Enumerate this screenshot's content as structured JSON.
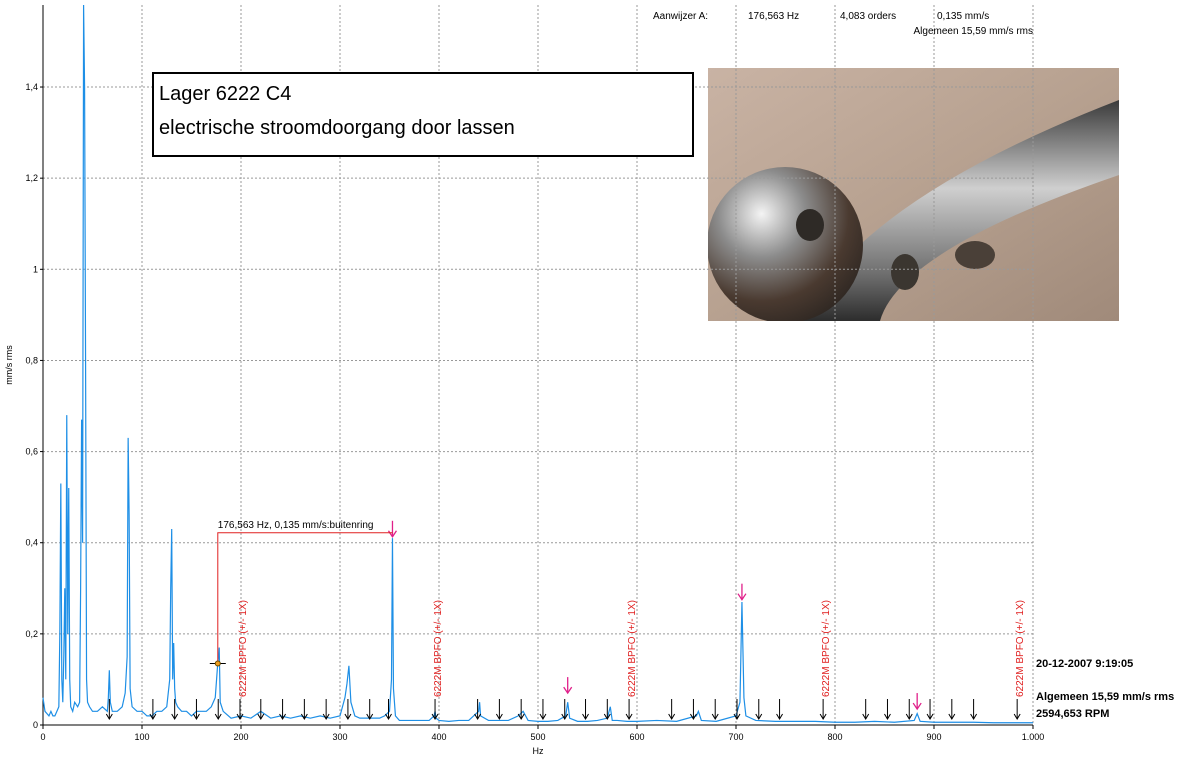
{
  "chart_data": {
    "type": "line",
    "x_label": "Hz",
    "y_label": "mm/s rms",
    "color": "#1e8fe6",
    "xlim": [
      0,
      1000
    ],
    "ylim": [
      0,
      1.58
    ],
    "xticks": [
      0,
      100,
      200,
      300,
      400,
      500,
      600,
      700,
      800,
      900,
      {
        "value": 1000,
        "label": "1.000"
      }
    ],
    "yticks": [
      0,
      {
        "value": 0.2,
        "label": "0,2"
      },
      {
        "value": 0.4,
        "label": "0,4"
      },
      {
        "value": 0.6,
        "label": "0,6"
      },
      {
        "value": 0.8,
        "label": "0,8"
      },
      1,
      {
        "value": 1.2,
        "label": "1,2"
      },
      {
        "value": 1.4,
        "label": "1,4"
      }
    ],
    "grid": true,
    "x": [
      0,
      2,
      4,
      6,
      8,
      10,
      12,
      14,
      16,
      17,
      18,
      19,
      20,
      21,
      22,
      23,
      24,
      25,
      26,
      27,
      28,
      30,
      32,
      35,
      37,
      38,
      39,
      40,
      41,
      42,
      43,
      44,
      45,
      47,
      50,
      55,
      60,
      65,
      66,
      67,
      68,
      70,
      75,
      80,
      83,
      85,
      86,
      87,
      88,
      90,
      95,
      100,
      105,
      110,
      115,
      120,
      125,
      128,
      129,
      130,
      131,
      132,
      133,
      134,
      136,
      140,
      145,
      150,
      155,
      160,
      165,
      170,
      174,
      176.5,
      178,
      179,
      182,
      190,
      200,
      210,
      220,
      230,
      240,
      250,
      260,
      270,
      280,
      290,
      300,
      305,
      307,
      309,
      311,
      315,
      320,
      330,
      340,
      345,
      350,
      352,
      353,
      354,
      356,
      360,
      370,
      380,
      390,
      395,
      396,
      397,
      400,
      410,
      420,
      430,
      440,
      441,
      442,
      450,
      460,
      470,
      480,
      485,
      490,
      500,
      510,
      520,
      528,
      530,
      532,
      540,
      550,
      560,
      570,
      573,
      575,
      580,
      590,
      600,
      620,
      640,
      660,
      662,
      665,
      680,
      700,
      704,
      706,
      708,
      710,
      720,
      740,
      760,
      780,
      800,
      820,
      840,
      860,
      880,
      883,
      886,
      900,
      920,
      940,
      960,
      980,
      1000
    ],
    "values": [
      0.06,
      0.03,
      0.025,
      0.02,
      0.03,
      0.02,
      0.02,
      0.03,
      0.04,
      0.2,
      0.53,
      0.1,
      0.05,
      0.15,
      0.3,
      0.1,
      0.68,
      0.2,
      0.52,
      0.1,
      0.04,
      0.03,
      0.05,
      0.04,
      0.05,
      0.3,
      0.67,
      0.4,
      1.58,
      1.4,
      0.8,
      0.1,
      0.05,
      0.04,
      0.03,
      0.03,
      0.04,
      0.03,
      0.06,
      0.12,
      0.05,
      0.03,
      0.03,
      0.04,
      0.07,
      0.15,
      0.63,
      0.46,
      0.08,
      0.04,
      0.03,
      0.03,
      0.02,
      0.02,
      0.03,
      0.03,
      0.04,
      0.1,
      0.3,
      0.43,
      0.1,
      0.18,
      0.08,
      0.05,
      0.04,
      0.03,
      0.03,
      0.02,
      0.03,
      0.03,
      0.03,
      0.04,
      0.06,
      0.135,
      0.17,
      0.05,
      0.03,
      0.015,
      0.02,
      0.015,
      0.03,
      0.015,
      0.02,
      0.015,
      0.02,
      0.015,
      0.02,
      0.015,
      0.02,
      0.06,
      0.09,
      0.13,
      0.05,
      0.02,
      0.015,
      0.015,
      0.015,
      0.02,
      0.03,
      0.1,
      0.41,
      0.08,
      0.02,
      0.01,
      0.01,
      0.01,
      0.01,
      0.02,
      0.03,
      0.015,
      0.01,
      0.008,
      0.01,
      0.01,
      0.03,
      0.05,
      0.02,
      0.01,
      0.01,
      0.01,
      0.02,
      0.03,
      0.01,
      0.008,
      0.008,
      0.01,
      0.02,
      0.05,
      0.015,
      0.008,
      0.008,
      0.01,
      0.015,
      0.04,
      0.01,
      0.01,
      0.008,
      0.008,
      0.01,
      0.008,
      0.02,
      0.03,
      0.01,
      0.008,
      0.02,
      0.05,
      0.27,
      0.06,
      0.02,
      0.01,
      0.008,
      0.008,
      0.008,
      0.006,
      0.006,
      0.008,
      0.006,
      0.01,
      0.025,
      0.008,
      0.006,
      0.006,
      0.006,
      0.005,
      0.005,
      0.005
    ],
    "harmonic_markers": [
      67,
      111,
      133,
      155,
      177,
      199,
      220,
      242,
      264,
      286,
      308,
      330,
      349,
      396,
      439,
      461,
      483,
      505,
      527,
      548,
      570,
      592,
      635,
      657,
      679,
      701,
      723,
      744,
      788,
      831,
      853,
      875,
      896,
      918,
      940,
      984
    ],
    "peak_markers": [
      {
        "x": 353,
        "y": 0.413
      },
      {
        "x": 530,
        "y": 0.07
      },
      {
        "x": 706,
        "y": 0.275
      },
      {
        "x": 883,
        "y": 0.035
      }
    ],
    "bpfo_labels": [
      {
        "x": 199,
        "label": "6222M BPFO (+/- 1X)"
      },
      {
        "x": 396,
        "label": "6222M BPFO (+/- 1X)"
      },
      {
        "x": 592,
        "label": "6222M BPFO (+/- 1X)"
      },
      {
        "x": 788,
        "label": "6222M BPFO (+/- 1X)"
      },
      {
        "x": 984,
        "label": "6222M BPFO (+/- 1X)"
      }
    ],
    "cursor": {
      "x": 176.563,
      "y": 0.135,
      "label": "176,563 Hz, 0,135 mm/s:buitenring"
    },
    "readout": {
      "title": "Aanwijzer A:",
      "frequency": "176,563 Hz",
      "orders": "4,083 orders",
      "amplitude": "0,135 mm/s",
      "overall": "Algemeen 15,59 mm/s rms"
    },
    "info": {
      "timestamp": "20-12-2007 9:19:05",
      "overall": "Algemeen 15,59 mm/s rms",
      "speed": "2594,653 RPM"
    },
    "note": {
      "line1": "Lager 6222 C4",
      "line2": "electrische stroomdoorgang door lassen"
    }
  }
}
